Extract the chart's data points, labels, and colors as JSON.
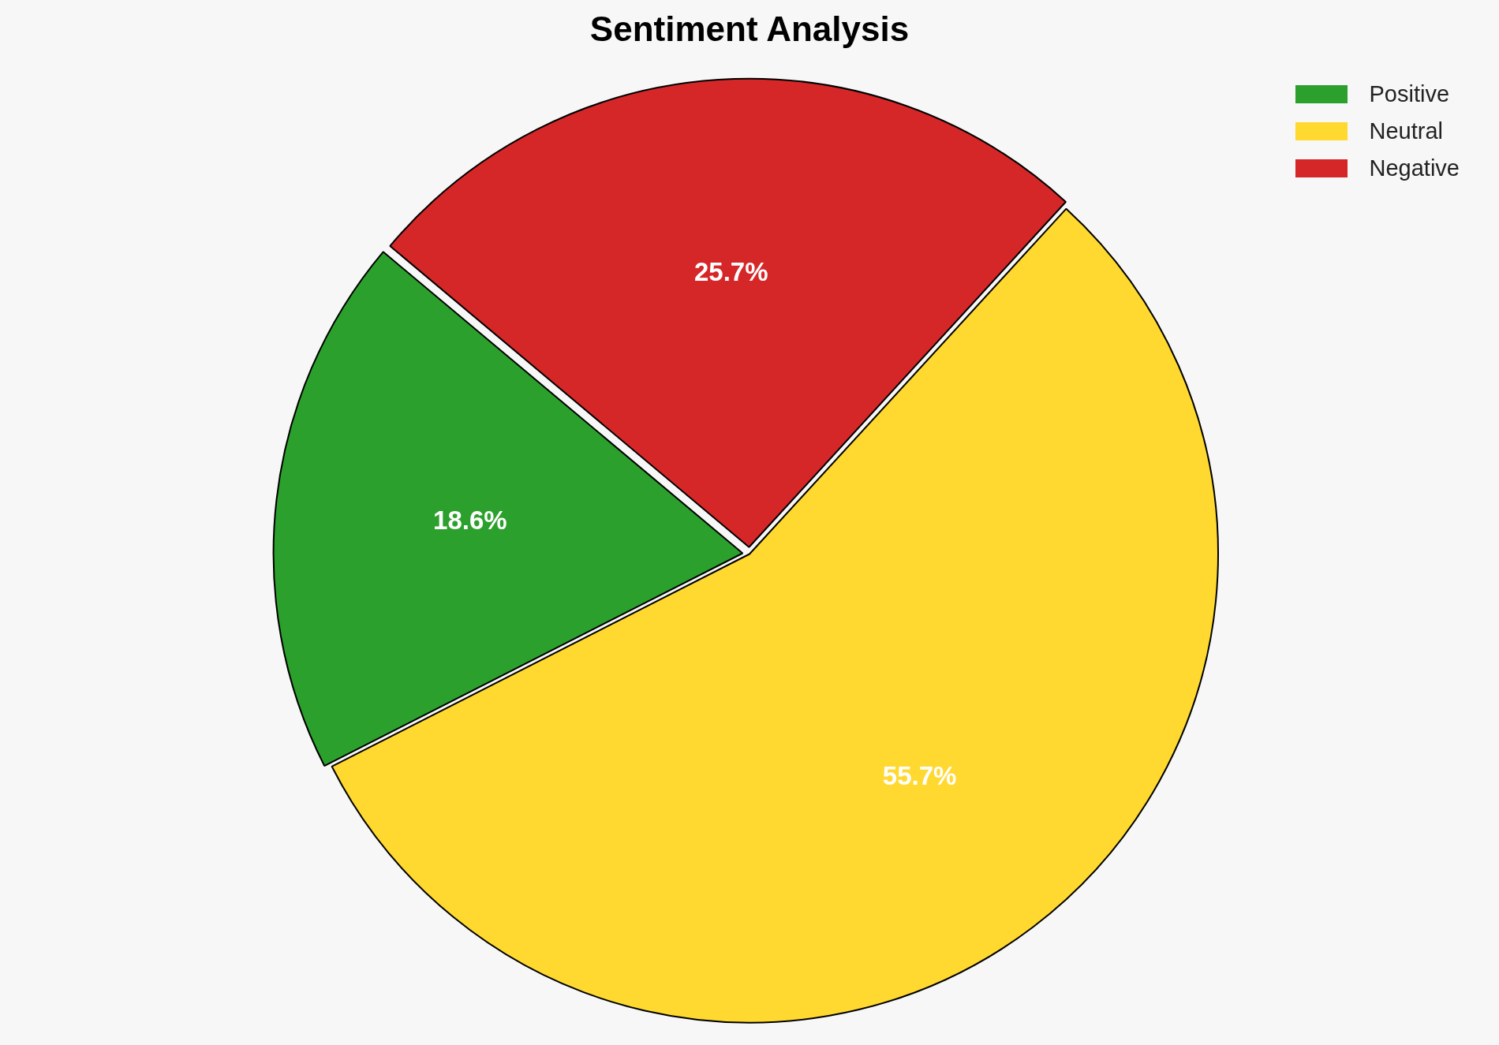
{
  "chart_data": {
    "type": "pie",
    "title": "Sentiment Analysis",
    "categories": [
      "Positive",
      "Neutral",
      "Negative"
    ],
    "values": [
      18.6,
      55.7,
      25.7
    ],
    "colors": [
      "#2ca02c",
      "#ffd92f",
      "#d62728"
    ],
    "value_labels": [
      "18.6%",
      "55.7%",
      "25.7%"
    ],
    "legend": "top right"
  }
}
